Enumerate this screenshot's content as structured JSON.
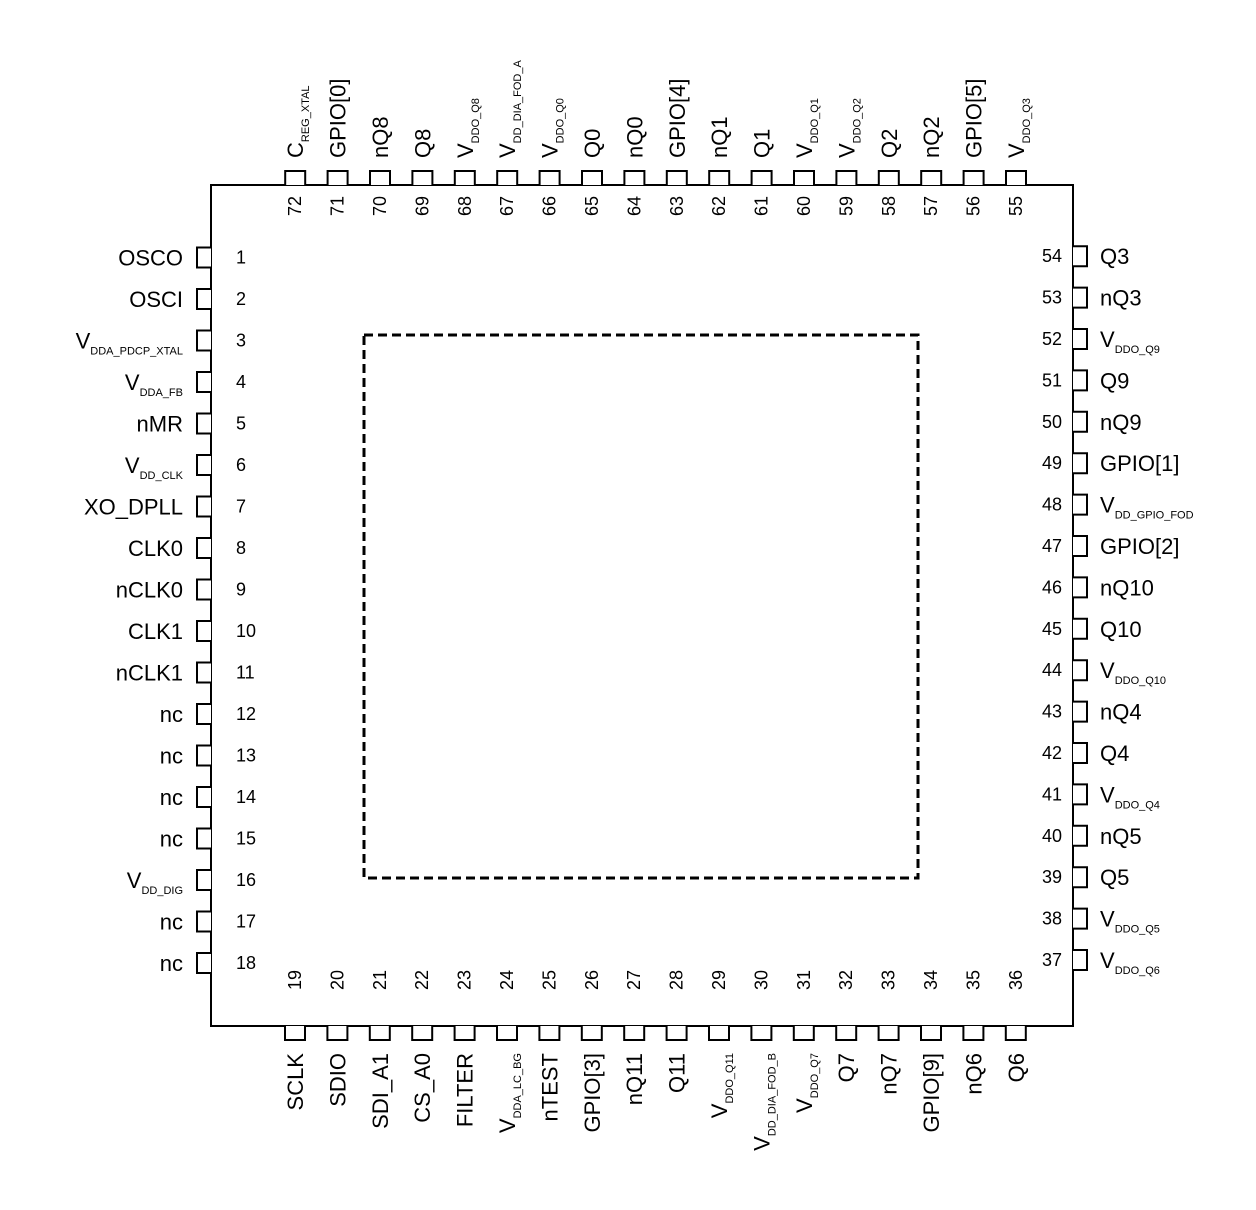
{
  "left_pins": [
    {
      "num": "1",
      "main": "OSCO",
      "sub": ""
    },
    {
      "num": "2",
      "main": "OSCI",
      "sub": ""
    },
    {
      "num": "3",
      "main": "V",
      "sub": "DDA_PDCP_XTAL"
    },
    {
      "num": "4",
      "main": "V",
      "sub": "DDA_FB"
    },
    {
      "num": "5",
      "main": "nMR",
      "sub": ""
    },
    {
      "num": "6",
      "main": "V",
      "sub": "DD_CLK"
    },
    {
      "num": "7",
      "main": "XO_DPLL",
      "sub": ""
    },
    {
      "num": "8",
      "main": "CLK0",
      "sub": ""
    },
    {
      "num": "9",
      "main": "nCLK0",
      "sub": ""
    },
    {
      "num": "10",
      "main": "CLK1",
      "sub": ""
    },
    {
      "num": "11",
      "main": "nCLK1",
      "sub": ""
    },
    {
      "num": "12",
      "main": "nc",
      "sub": ""
    },
    {
      "num": "13",
      "main": "nc",
      "sub": ""
    },
    {
      "num": "14",
      "main": "nc",
      "sub": ""
    },
    {
      "num": "15",
      "main": "nc",
      "sub": ""
    },
    {
      "num": "16",
      "main": "V",
      "sub": "DD_DIG"
    },
    {
      "num": "17",
      "main": "nc",
      "sub": ""
    },
    {
      "num": "18",
      "main": "nc",
      "sub": ""
    }
  ],
  "bottom_pins": [
    {
      "num": "19",
      "main": "SCLK",
      "sub": ""
    },
    {
      "num": "20",
      "main": "SDIO",
      "sub": ""
    },
    {
      "num": "21",
      "main": "SDI_A1",
      "sub": ""
    },
    {
      "num": "22",
      "main": "CS_A0",
      "sub": ""
    },
    {
      "num": "23",
      "main": "FILTER",
      "sub": ""
    },
    {
      "num": "24",
      "main": "V",
      "sub": "DDA_LC_BG"
    },
    {
      "num": "25",
      "main": "nTEST",
      "sub": ""
    },
    {
      "num": "26",
      "main": "GPIO[3]",
      "sub": ""
    },
    {
      "num": "27",
      "main": "nQ11",
      "sub": ""
    },
    {
      "num": "28",
      "main": "Q11",
      "sub": ""
    },
    {
      "num": "29",
      "main": "V",
      "sub": "DDO_Q11"
    },
    {
      "num": "30",
      "main": "V",
      "sub": "DD_DIA_FOD_B"
    },
    {
      "num": "31",
      "main": "V",
      "sub": "DDO_Q7"
    },
    {
      "num": "32",
      "main": "Q7",
      "sub": ""
    },
    {
      "num": "33",
      "main": "nQ7",
      "sub": ""
    },
    {
      "num": "34",
      "main": "GPIO[9]",
      "sub": ""
    },
    {
      "num": "35",
      "main": "nQ6",
      "sub": ""
    },
    {
      "num": "36",
      "main": "Q6",
      "sub": ""
    }
  ],
  "right_pins": [
    {
      "num": "37",
      "main": "V",
      "sub": "DDO_Q6"
    },
    {
      "num": "38",
      "main": "V",
      "sub": "DDO_Q5"
    },
    {
      "num": "39",
      "main": "Q5",
      "sub": ""
    },
    {
      "num": "40",
      "main": "nQ5",
      "sub": ""
    },
    {
      "num": "41",
      "main": "V",
      "sub": "DDO_Q4"
    },
    {
      "num": "42",
      "main": "Q4",
      "sub": ""
    },
    {
      "num": "43",
      "main": "nQ4",
      "sub": ""
    },
    {
      "num": "44",
      "main": "V",
      "sub": "DDO_Q10"
    },
    {
      "num": "45",
      "main": "Q10",
      "sub": ""
    },
    {
      "num": "46",
      "main": "nQ10",
      "sub": ""
    },
    {
      "num": "47",
      "main": "GPIO[2]",
      "sub": ""
    },
    {
      "num": "48",
      "main": "V",
      "sub": "DD_GPIO_FOD"
    },
    {
      "num": "49",
      "main": "GPIO[1]",
      "sub": ""
    },
    {
      "num": "50",
      "main": "nQ9",
      "sub": ""
    },
    {
      "num": "51",
      "main": "Q9",
      "sub": ""
    },
    {
      "num": "52",
      "main": "V",
      "sub": "DDO_Q9"
    },
    {
      "num": "53",
      "main": "nQ3",
      "sub": ""
    },
    {
      "num": "54",
      "main": "Q3",
      "sub": ""
    }
  ],
  "top_pins": [
    {
      "num": "55",
      "main": "V",
      "sub": "DDO_Q3"
    },
    {
      "num": "56",
      "main": "GPIO[5]",
      "sub": ""
    },
    {
      "num": "57",
      "main": "nQ2",
      "sub": ""
    },
    {
      "num": "58",
      "main": "Q2",
      "sub": ""
    },
    {
      "num": "59",
      "main": "V",
      "sub": "DDO_Q2"
    },
    {
      "num": "60",
      "main": "V",
      "sub": "DDO_Q1"
    },
    {
      "num": "61",
      "main": "Q1",
      "sub": ""
    },
    {
      "num": "62",
      "main": "nQ1",
      "sub": ""
    },
    {
      "num": "63",
      "main": "GPIO[4]",
      "sub": ""
    },
    {
      "num": "64",
      "main": "nQ0",
      "sub": ""
    },
    {
      "num": "65",
      "main": "Q0",
      "sub": ""
    },
    {
      "num": "66",
      "main": "V",
      "sub": "DDO_Q0"
    },
    {
      "num": "67",
      "main": "V",
      "sub": "DD_DIA_FOD_A"
    },
    {
      "num": "68",
      "main": "V",
      "sub": "DDO_Q8"
    },
    {
      "num": "69",
      "main": "Q8",
      "sub": ""
    },
    {
      "num": "70",
      "main": "nQ8",
      "sub": ""
    },
    {
      "num": "71",
      "main": "GPIO[0]",
      "sub": ""
    },
    {
      "num": "72",
      "main": "C",
      "sub": "REG_XTAL"
    }
  ]
}
